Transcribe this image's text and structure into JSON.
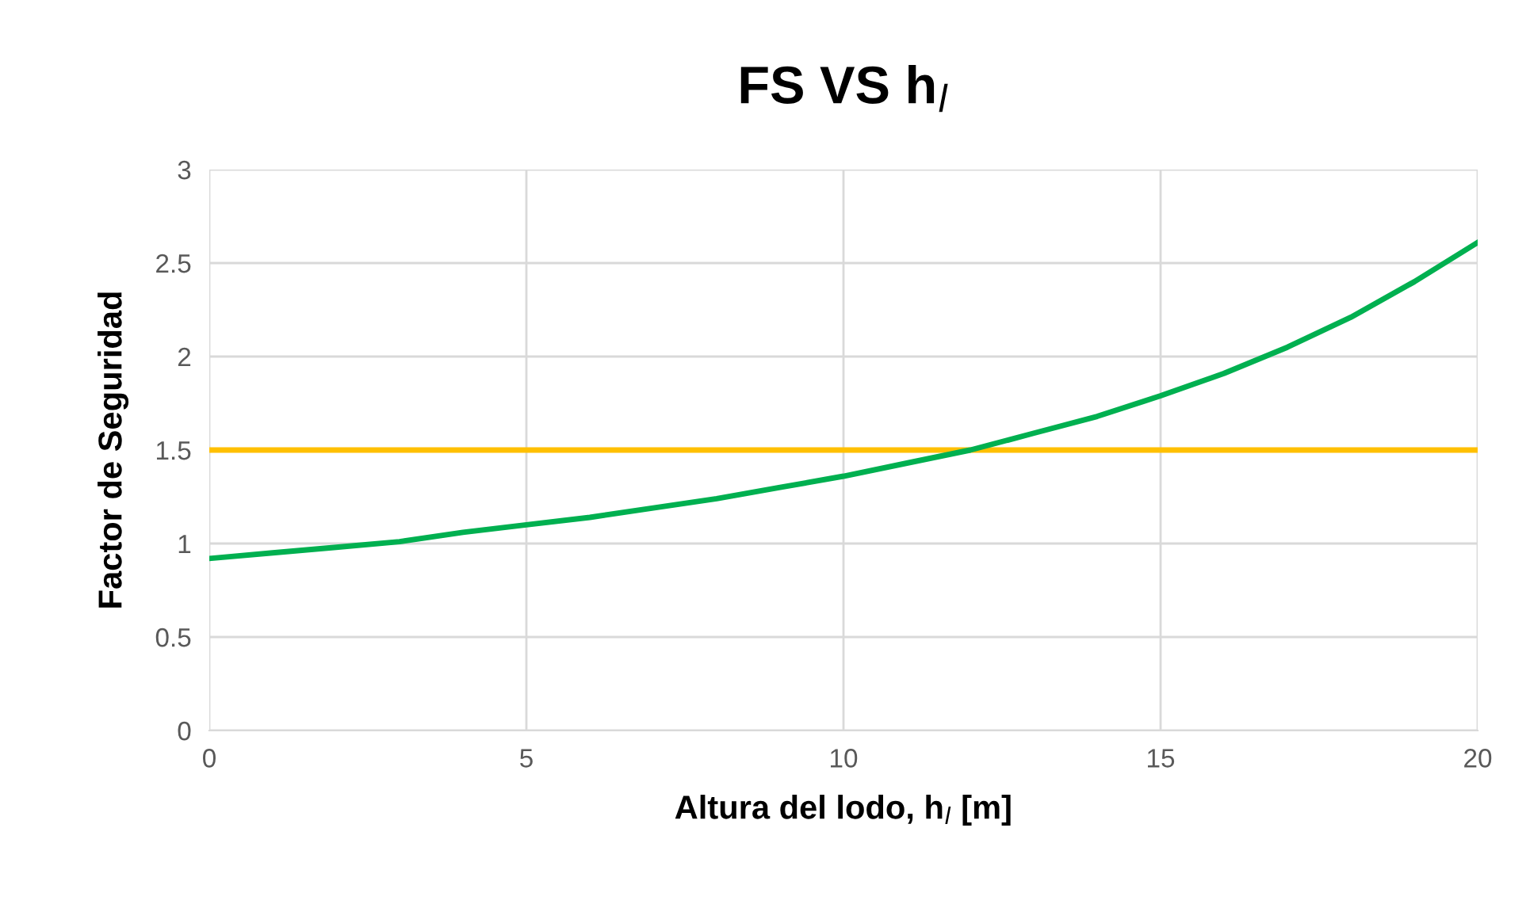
{
  "chart_data": {
    "type": "line",
    "title": "FS VS h$_{l}$",
    "xlabel": "Altura del lodo, h$_{l}$ [m]",
    "ylabel": "Factor de Seguridad",
    "series": [
      {
        "color": "#00b050",
        "x": [
          0,
          1,
          2,
          3,
          4,
          5,
          6,
          7,
          8,
          9,
          10,
          11,
          12,
          13,
          14,
          15,
          16,
          17,
          18,
          19,
          20
        ],
        "values": [
          0.92,
          0.95,
          0.98,
          1.01,
          1.06,
          1.1,
          1.14,
          1.19,
          1.24,
          1.3,
          1.36,
          1.43,
          1.5,
          1.59,
          1.68,
          1.79,
          1.91,
          2.05,
          2.21,
          2.4,
          2.61
        ]
      }
    ],
    "ref_lines": [
      {
        "axis": "y",
        "value": 1.5,
        "color": "#ffc000"
      }
    ],
    "xlim": [
      0,
      20
    ],
    "xticks": [
      0,
      5,
      10,
      15,
      20
    ],
    "ylim": [
      0,
      3
    ],
    "yticks": [
      0,
      0.5,
      1,
      1.5,
      2,
      2.5,
      3
    ],
    "grid": true,
    "marker": "none",
    "line_style": "solid"
  }
}
